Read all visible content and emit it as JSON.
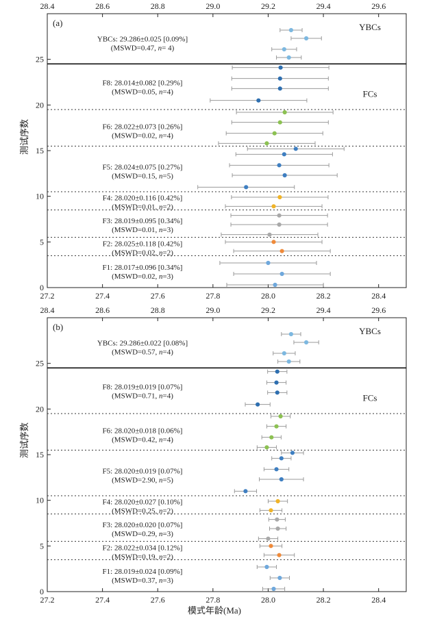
{
  "ylabel": "测试序数",
  "xlabel": "模式年龄(Ma)",
  "chart_data": [
    {
      "type": "scatter",
      "panel_label": "(a)",
      "xlim": [
        27.2,
        28.5
      ],
      "xticks": [
        27.2,
        27.4,
        27.6,
        27.8,
        28.0,
        28.2,
        28.4
      ],
      "top_xlim": [
        28.4,
        29.7
      ],
      "top_xticks": [
        28.4,
        28.6,
        28.8,
        29.0,
        29.2,
        29.4,
        29.6
      ],
      "ylim": [
        0,
        30
      ],
      "yticks": [
        0,
        5,
        10,
        15,
        20,
        25
      ],
      "divider_y": 24.5,
      "dotted_y": [
        3.5,
        5.5,
        8.5,
        10.5,
        15.5,
        19.5
      ],
      "group_labels": [
        {
          "text": "YBCs",
          "y": 28.5
        },
        {
          "text": "FCs",
          "y": 21.2
        }
      ],
      "annotations": [
        {
          "line1": "YBCs: 29.286±0.025 [0.09%]",
          "line2a": "(MSWD=0.47, ",
          "line2n": "n",
          "line2b": "= 4)",
          "y": 26.8
        },
        {
          "line1": "F8: 28.014±0.082 [0.29%]",
          "line2a": "(MSWD=0.05, ",
          "line2n": "n",
          "line2b": "=4)",
          "y": 22.0
        },
        {
          "line1": "F6: 28.022±0.073 [0.26%]",
          "line2a": "(MSWD=0.02, ",
          "line2n": "n",
          "line2b": "=4)",
          "y": 17.2
        },
        {
          "line1": "F5: 28.024±0.075 [0.27%]",
          "line2a": "(MSWD=0.15, ",
          "line2n": "n",
          "line2b": "=5)",
          "y": 12.8
        },
        {
          "line1": "F4: 28.020±0.116 [0.42%]",
          "line2a": "(MSWD=0.01, ",
          "line2n": "n",
          "line2b": "=2)",
          "y": 9.4
        },
        {
          "line1": "F3: 28.019±0.095 [0.34%]",
          "line2a": "(MSWD=0.01, ",
          "line2n": "n",
          "line2b": "=3)",
          "y": 6.9
        },
        {
          "line1": "F2: 28.025±0.118 [0.42%]",
          "line2a": "(MSWD=0.02, ",
          "line2n": "n",
          "line2b": "=2)",
          "y": 4.4
        },
        {
          "line1": "F1: 28.017±0.096 [0.34%]",
          "line2a": "(MSWD=0.02, ",
          "line2n": "n",
          "line2b": "=3)",
          "y": 1.8
        }
      ],
      "series": [
        {
          "group": "YBCs",
          "axis": "top",
          "color": "#7db8e0",
          "points": [
            {
              "y": 25.2,
              "x": 29.275,
              "err": 0.045
            },
            {
              "y": 26.1,
              "x": 29.258,
              "err": 0.045
            },
            {
              "y": 27.3,
              "x": 29.338,
              "err": 0.055
            },
            {
              "y": 28.2,
              "x": 29.283,
              "err": 0.04
            }
          ]
        },
        {
          "group": "F8",
          "axis": "bottom",
          "color": "#2e6fb0",
          "points": [
            {
              "y": 20.5,
              "x": 27.965,
              "err": 0.175
            },
            {
              "y": 21.8,
              "x": 28.043,
              "err": 0.175
            },
            {
              "y": 22.9,
              "x": 28.043,
              "err": 0.175
            },
            {
              "y": 24.1,
              "x": 28.045,
              "err": 0.175
            }
          ]
        },
        {
          "group": "F6",
          "axis": "bottom",
          "color": "#8cc152",
          "points": [
            {
              "y": 15.8,
              "x": 27.995,
              "err": 0.175
            },
            {
              "y": 16.9,
              "x": 28.023,
              "err": 0.175
            },
            {
              "y": 18.1,
              "x": 28.043,
              "err": 0.175
            },
            {
              "y": 19.2,
              "x": 28.06,
              "err": 0.175
            }
          ]
        },
        {
          "group": "F5",
          "axis": "bottom",
          "color": "#3f7fc1",
          "points": [
            {
              "y": 11.0,
              "x": 27.92,
              "err": 0.175
            },
            {
              "y": 12.3,
              "x": 28.06,
              "err": 0.19
            },
            {
              "y": 13.4,
              "x": 28.04,
              "err": 0.18
            },
            {
              "y": 14.6,
              "x": 28.058,
              "err": 0.175
            },
            {
              "y": 15.2,
              "x": 28.1,
              "err": 0.175
            }
          ]
        },
        {
          "group": "F4",
          "axis": "bottom",
          "color": "#f0b429",
          "points": [
            {
              "y": 8.9,
              "x": 28.02,
              "err": 0.175
            },
            {
              "y": 9.9,
              "x": 28.042,
              "err": 0.175
            }
          ]
        },
        {
          "group": "F3",
          "axis": "bottom",
          "color": "#a9a9a9",
          "points": [
            {
              "y": 5.8,
              "x": 28.005,
              "err": 0.175
            },
            {
              "y": 6.9,
              "x": 28.04,
              "err": 0.175
            },
            {
              "y": 7.9,
              "x": 28.04,
              "err": 0.175
            }
          ]
        },
        {
          "group": "F2",
          "axis": "bottom",
          "color": "#ef8a3a",
          "points": [
            {
              "y": 4.0,
              "x": 28.05,
              "err": 0.175
            },
            {
              "y": 5.0,
              "x": 28.02,
              "err": 0.175
            }
          ]
        },
        {
          "group": "F1",
          "axis": "bottom",
          "color": "#6fa8dc",
          "points": [
            {
              "y": 0.3,
              "x": 28.025,
              "err": 0.175
            },
            {
              "y": 1.5,
              "x": 28.05,
              "err": 0.175
            },
            {
              "y": 2.7,
              "x": 28.0,
              "err": 0.175
            }
          ]
        }
      ]
    },
    {
      "type": "scatter",
      "panel_label": "(b)",
      "xlim": [
        27.2,
        28.5
      ],
      "xticks": [
        27.2,
        27.4,
        27.6,
        27.8,
        28.0,
        28.2,
        28.4
      ],
      "top_xlim": [
        28.4,
        29.7
      ],
      "top_xticks": [
        28.4,
        28.6,
        28.8,
        29.0,
        29.2,
        29.4,
        29.6
      ],
      "ylim": [
        0,
        30
      ],
      "yticks": [
        0,
        5,
        10,
        15,
        20,
        25
      ],
      "divider_y": 24.5,
      "dotted_y": [
        3.5,
        5.5,
        8.5,
        10.5,
        15.5,
        19.5
      ],
      "group_labels": [
        {
          "text": "YBCs",
          "y": 28.5
        },
        {
          "text": "FCs",
          "y": 21.2
        }
      ],
      "annotations": [
        {
          "line1": "YBCs: 29.286±0.022 [0.08%]",
          "line2a": "(MSWD=0.57, ",
          "line2n": "n",
          "line2b": "=4)",
          "y": 26.8
        },
        {
          "line1": "F8: 28.019±0.019 [0.07%]",
          "line2a": "(MSWD=0.71, ",
          "line2n": "n",
          "line2b": "=4)",
          "y": 22.0
        },
        {
          "line1": "F6: 28.020±0.018 [0.06%]",
          "line2a": "(MSWD=0.42, ",
          "line2n": "n",
          "line2b": "=4)",
          "y": 17.2
        },
        {
          "line1": "F5: 28.020±0.019 [0.07%]",
          "line2a": "(MSWD=2.90, ",
          "line2n": "n",
          "line2b": "=5)",
          "y": 12.8
        },
        {
          "line1": "F4: 28.020±0.027 [0.10%]",
          "line2a": "(MSWD=0.25, ",
          "line2n": "n",
          "line2b": "=2)",
          "y": 9.4
        },
        {
          "line1": "F3: 28.020±0.020 [0.07%]",
          "line2a": "(MSWD=0.29, ",
          "line2n": "n",
          "line2b": "=3)",
          "y": 6.9
        },
        {
          "line1": "F2: 28.022±0.034 [0.12%]",
          "line2a": "(MSWD=0.19, ",
          "line2n": "n",
          "line2b": "=2)",
          "y": 4.4
        },
        {
          "line1": "F1: 28.019±0.024 [0.09%]",
          "line2a": "(MSWD=0.37, ",
          "line2n": "n",
          "line2b": "=3)",
          "y": 1.8
        }
      ],
      "series": [
        {
          "group": "YBCs",
          "axis": "top",
          "color": "#7db8e0",
          "points": [
            {
              "y": 25.2,
              "x": 29.275,
              "err": 0.04
            },
            {
              "y": 26.1,
              "x": 29.258,
              "err": 0.04
            },
            {
              "y": 27.3,
              "x": 29.338,
              "err": 0.045
            },
            {
              "y": 28.2,
              "x": 29.283,
              "err": 0.035
            }
          ]
        },
        {
          "group": "F8",
          "axis": "bottom",
          "color": "#2e6fb0",
          "points": [
            {
              "y": 20.5,
              "x": 27.962,
              "err": 0.045
            },
            {
              "y": 21.8,
              "x": 28.033,
              "err": 0.035
            },
            {
              "y": 22.9,
              "x": 28.03,
              "err": 0.035
            },
            {
              "y": 24.1,
              "x": 28.033,
              "err": 0.035
            }
          ]
        },
        {
          "group": "F6",
          "axis": "bottom",
          "color": "#8cc152",
          "points": [
            {
              "y": 15.8,
              "x": 27.995,
              "err": 0.035
            },
            {
              "y": 16.9,
              "x": 28.012,
              "err": 0.035
            },
            {
              "y": 18.1,
              "x": 28.03,
              "err": 0.035
            },
            {
              "y": 19.2,
              "x": 28.045,
              "err": 0.035
            }
          ]
        },
        {
          "group": "F5",
          "axis": "bottom",
          "color": "#3f7fc1",
          "points": [
            {
              "y": 11.0,
              "x": 27.918,
              "err": 0.04
            },
            {
              "y": 12.3,
              "x": 28.048,
              "err": 0.08
            },
            {
              "y": 13.4,
              "x": 28.03,
              "err": 0.045
            },
            {
              "y": 14.6,
              "x": 28.048,
              "err": 0.035
            },
            {
              "y": 15.2,
              "x": 28.088,
              "err": 0.04
            }
          ]
        },
        {
          "group": "F4",
          "axis": "bottom",
          "color": "#f0b429",
          "points": [
            {
              "y": 8.9,
              "x": 28.01,
              "err": 0.04
            },
            {
              "y": 9.9,
              "x": 28.035,
              "err": 0.035
            }
          ]
        },
        {
          "group": "F3",
          "axis": "bottom",
          "color": "#a9a9a9",
          "points": [
            {
              "y": 5.8,
              "x": 28.0,
              "err": 0.035
            },
            {
              "y": 6.9,
              "x": 28.035,
              "err": 0.03
            },
            {
              "y": 7.9,
              "x": 28.032,
              "err": 0.03
            }
          ]
        },
        {
          "group": "F2",
          "axis": "bottom",
          "color": "#ef8a3a",
          "points": [
            {
              "y": 4.0,
              "x": 28.04,
              "err": 0.055
            },
            {
              "y": 5.0,
              "x": 28.01,
              "err": 0.04
            }
          ]
        },
        {
          "group": "F1",
          "axis": "bottom",
          "color": "#6fa8dc",
          "points": [
            {
              "y": 0.3,
              "x": 28.02,
              "err": 0.04
            },
            {
              "y": 1.5,
              "x": 28.042,
              "err": 0.035
            },
            {
              "y": 2.7,
              "x": 27.995,
              "err": 0.035
            }
          ]
        }
      ]
    }
  ]
}
